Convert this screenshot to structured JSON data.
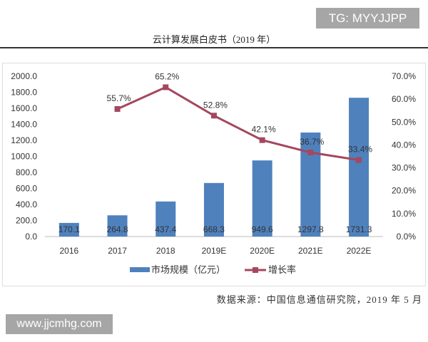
{
  "header": {
    "title": "云计算发展白皮书（2019 年）"
  },
  "watermarks": {
    "tg": "TG: MYYJJPP",
    "web": "www.jjcmhg.com"
  },
  "source": "数据来源：中国信息通信研究院，2019 年 5 月",
  "colors": {
    "bar": "#4f81bd",
    "line": "#a5475e"
  },
  "chart_data": {
    "type": "bar+line",
    "categories": [
      "2016",
      "2017",
      "2018",
      "2019E",
      "2020E",
      "2021E",
      "2022E"
    ],
    "series": [
      {
        "name": "市场规模（亿元）",
        "type": "bar",
        "axis": "left",
        "values": [
          170.1,
          264.8,
          437.4,
          668.3,
          949.6,
          1297.8,
          1731.3
        ],
        "labels": [
          "170.1",
          "264.8",
          "437.4",
          "668.3",
          "949.6",
          "1297.8",
          "1731.3"
        ]
      },
      {
        "name": "增长率",
        "type": "line",
        "axis": "right",
        "values": [
          null,
          55.7,
          65.2,
          52.8,
          42.1,
          36.7,
          33.4
        ],
        "labels": [
          "",
          "55.7%",
          "65.2%",
          "52.8%",
          "42.1%",
          "36.7%",
          "33.4%"
        ]
      }
    ],
    "left_axis": {
      "ylim": [
        0,
        2000
      ],
      "ticks": [
        "0.0",
        "200.0",
        "400.0",
        "600.0",
        "800.0",
        "1000.0",
        "1200.0",
        "1400.0",
        "1600.0",
        "1800.0",
        "2000.0"
      ]
    },
    "right_axis": {
      "ylim": [
        0,
        70
      ],
      "ticks": [
        "0.0%",
        "10.0%",
        "20.0%",
        "30.0%",
        "40.0%",
        "50.0%",
        "60.0%",
        "70.0%"
      ]
    },
    "grid": false,
    "legend_position": "bottom"
  }
}
